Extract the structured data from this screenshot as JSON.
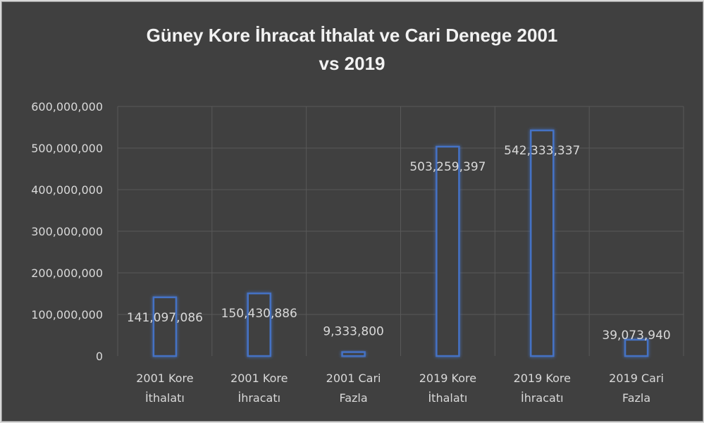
{
  "chart_data": {
    "type": "bar",
    "title": "Güney Kore İhracat İthalat ve Cari Denege 2001 vs 2019",
    "title_lines": [
      "Güney Kore İhracat İthalat ve Cari Denege 2001",
      "vs 2019"
    ],
    "categories": [
      [
        "2001 Kore",
        "İthalatı"
      ],
      [
        "2001 Kore",
        "İhracatı"
      ],
      [
        "2001 Cari",
        "Fazla"
      ],
      [
        "2019 Kore",
        "İthalatı"
      ],
      [
        "2019 Kore",
        "İhracatı"
      ],
      [
        "2019 Cari",
        "Fazla"
      ]
    ],
    "values": [
      141097086,
      150430886,
      9333800,
      503259397,
      542333337,
      39073940
    ],
    "data_labels": [
      "141,097,086",
      "150,430,886",
      "9,333,800",
      "503,259,397",
      "542,333,337",
      "39,073,940"
    ],
    "y_ticks": [
      "0",
      "100,000,000",
      "200,000,000",
      "300,000,000",
      "400,000,000",
      "500,000,000",
      "600,000,000"
    ],
    "ylim": [
      0,
      600000000
    ],
    "xlabel": "",
    "ylabel": "",
    "grid": true,
    "legend": "none",
    "colors": {
      "bar_outline": "#4472c4",
      "background": "#404040",
      "grid": "#595959",
      "text": "#d9d9d9"
    }
  }
}
